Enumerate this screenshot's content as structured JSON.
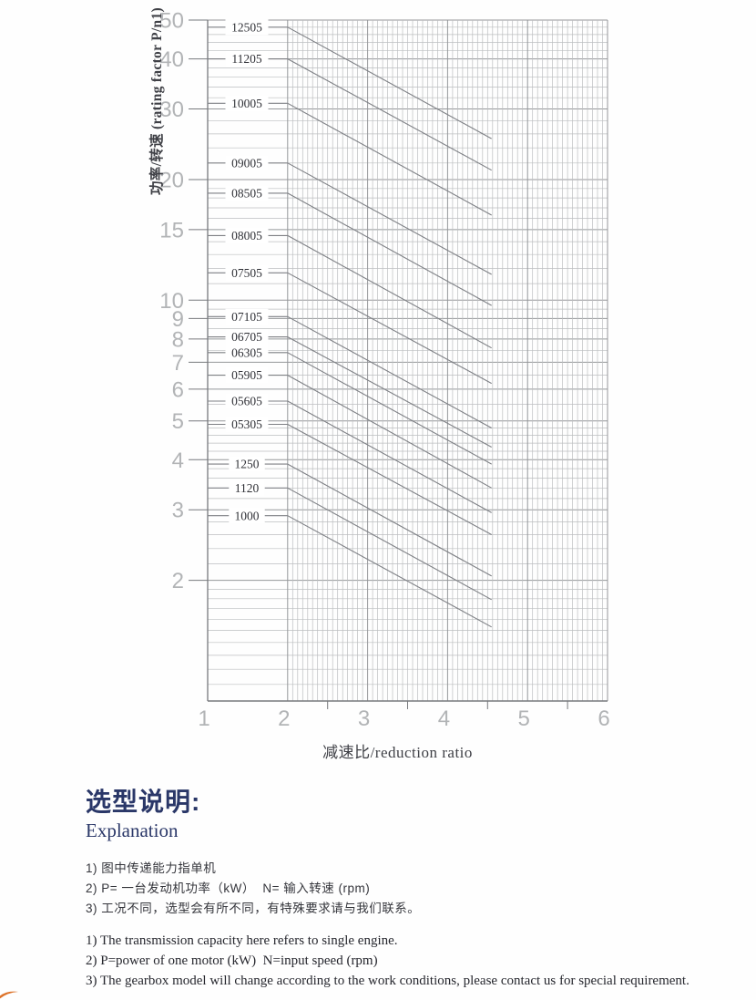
{
  "chart_data": {
    "type": "line",
    "title": "",
    "xlabel": "减速比/reduction ratio",
    "ylabel": "功率/转速 (rating factor P/n1)",
    "x_axis": {
      "scale": "linear",
      "min": 1,
      "max": 6,
      "tick_labels": [
        "1",
        "2",
        "3",
        "4",
        "5",
        "6"
      ],
      "half_ticks": [
        2.5,
        3.5,
        4.5,
        5.5
      ],
      "grid_from": 2,
      "minor_per_unit": 16
    },
    "y_axis": {
      "scale": "log",
      "min": 1,
      "max": 50,
      "tick_labels": [
        "50",
        "40",
        "30",
        "20",
        "15",
        "10",
        "9",
        "8",
        "7",
        "6",
        "5",
        "4",
        "3",
        "2"
      ]
    },
    "legend_position": "inline-labels",
    "grid": "on",
    "line_x_start": 1,
    "line_x_break": 2,
    "line_x_end": 4.55,
    "series": [
      {
        "label": "12505",
        "p_n1_at_ratio2": 48,
        "p_n1_at_end": 25.3
      },
      {
        "label": "11205",
        "p_n1_at_ratio2": 40,
        "p_n1_at_end": 21.1
      },
      {
        "label": "10005",
        "p_n1_at_ratio2": 31,
        "p_n1_at_end": 16.3
      },
      {
        "label": "09005",
        "p_n1_at_ratio2": 22,
        "p_n1_at_end": 11.6
      },
      {
        "label": "08505",
        "p_n1_at_ratio2": 18.5,
        "p_n1_at_end": 9.7
      },
      {
        "label": "08005",
        "p_n1_at_ratio2": 14.5,
        "p_n1_at_end": 7.6
      },
      {
        "label": "07505",
        "p_n1_at_ratio2": 11.7,
        "p_n1_at_end": 6.2
      },
      {
        "label": "07105",
        "p_n1_at_ratio2": 9.1,
        "p_n1_at_end": 4.8
      },
      {
        "label": "06705",
        "p_n1_at_ratio2": 8.1,
        "p_n1_at_end": 4.3
      },
      {
        "label": "06305",
        "p_n1_at_ratio2": 7.4,
        "p_n1_at_end": 3.9
      },
      {
        "label": "05905",
        "p_n1_at_ratio2": 6.5,
        "p_n1_at_end": 3.4
      },
      {
        "label": "05605",
        "p_n1_at_ratio2": 5.6,
        "p_n1_at_end": 2.95
      },
      {
        "label": "05305",
        "p_n1_at_ratio2": 4.9,
        "p_n1_at_end": 2.6
      },
      {
        "label": "1250",
        "p_n1_at_ratio2": 3.9,
        "p_n1_at_end": 2.05
      },
      {
        "label": "1120",
        "p_n1_at_ratio2": 3.4,
        "p_n1_at_end": 1.79
      },
      {
        "label": "1000",
        "p_n1_at_ratio2": 2.9,
        "p_n1_at_end": 1.53
      }
    ]
  },
  "explanation": {
    "heading_cn": "选型说明:",
    "heading_en": "Explanation",
    "notes_cn": [
      "1) 图中传递能力指单机",
      "2) P= 一台发动机功率（kW）  N= 输入转速 (rpm)",
      "3) 工况不同，选型会有所不同，有特殊要求请与我们联系。"
    ],
    "notes_en": [
      "1) The transmission capacity here refers to single engine.",
      "2) P=power of one motor (kW)  N=input speed (rpm)",
      "3) The gearbox model will change according to the work conditions, please contact us for special requirement."
    ]
  },
  "colors": {
    "heading": "#2a3768",
    "grid_minor": "#bcbec0",
    "grid_major": "#95979a",
    "axis": "#77797d",
    "series_line": "#7e8085",
    "series_label": "#2f3036",
    "tick_label": "#b2b4b6",
    "axis_title": "#3f4046",
    "note_cn": "#34353b",
    "note_en": "#26272e",
    "accent_swoosh": "#dd7229"
  }
}
